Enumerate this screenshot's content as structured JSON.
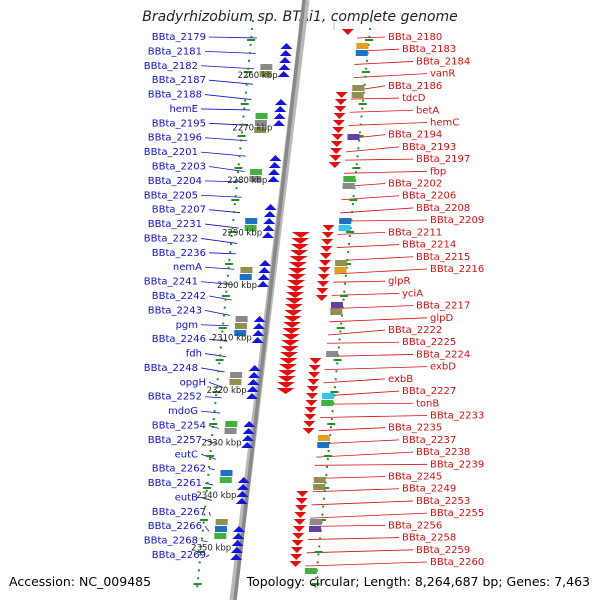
{
  "title": "Bradyrhizobium sp. BTAi1, complete genome",
  "footer": {
    "accession": "Accession: NC_009485",
    "topology": "Topology: circular; Length: 8,264,687 bp; Genes: 7,463"
  },
  "colors": {
    "backbone": "#888888",
    "forward_gene": "#1515d8",
    "reverse_gene": "#e01010",
    "forward_label": "#1010c8",
    "reverse_label": "#d01010",
    "tick_dots": "#2a8a2a"
  },
  "ruler": [
    "2260 kbp",
    "2270 kbp",
    "2280 kbp",
    "2290 kbp",
    "2300 kbp",
    "2310 kbp",
    "2320 kbp",
    "2330 kbp",
    "2340 kbp",
    "2350 kbp"
  ],
  "forward_labels": [
    "BBta_2179",
    "BBta_2181",
    "BBta_2182",
    "BBta_2187",
    "BBta_2188",
    "hemE",
    "BBta_2195",
    "BBta_2196",
    "BBta_2201",
    "BBta_2203",
    "BBta_2204",
    "BBta_2205",
    "BBta_2207",
    "BBta_2231",
    "BBta_2232",
    "BBta_2236",
    "nemA",
    "BBta_2241",
    "BBta_2242",
    "BBta_2243",
    "pgm",
    "BBta_2246",
    "fdh",
    "BBta_2248",
    "opgH",
    "BBta_2252",
    "mdoG",
    "BBta_2254",
    "BBta_2257",
    "eutC",
    "BBta_2262",
    "BBta_2261",
    "eutB",
    "BBta_2267",
    "BBta_2266",
    "BBta_2268",
    "BBta_2269"
  ],
  "reverse_labels": [
    "BBta_2180",
    "BBta_2183",
    "BBta_2184",
    "vanR",
    "BBta_2186",
    "tdcD",
    "betA",
    "hemC",
    "BBta_2194",
    "BBta_2193",
    "BBta_2197",
    "fbp",
    "BBta_2202",
    "BBta_2206",
    "BBta_2208",
    "BBta_2209",
    "BBta_2211",
    "BBta_2214",
    "BBta_2215",
    "BBta_2216",
    "glpR",
    "yciA",
    "BBta_2217",
    "glpD",
    "BBta_2222",
    "BBta_2225",
    "BBta_2224",
    "exbD",
    "exbB",
    "BBta_2227",
    "tonB",
    "BBta_2233",
    "BBta_2235",
    "BBta_2237",
    "BBta_2238",
    "BBta_2239",
    "BBta_2245",
    "BBta_2249",
    "BBta_2253",
    "BBta_2255",
    "BBta_2256",
    "BBta_2258",
    "BBta_2259",
    "BBta_2260"
  ]
}
